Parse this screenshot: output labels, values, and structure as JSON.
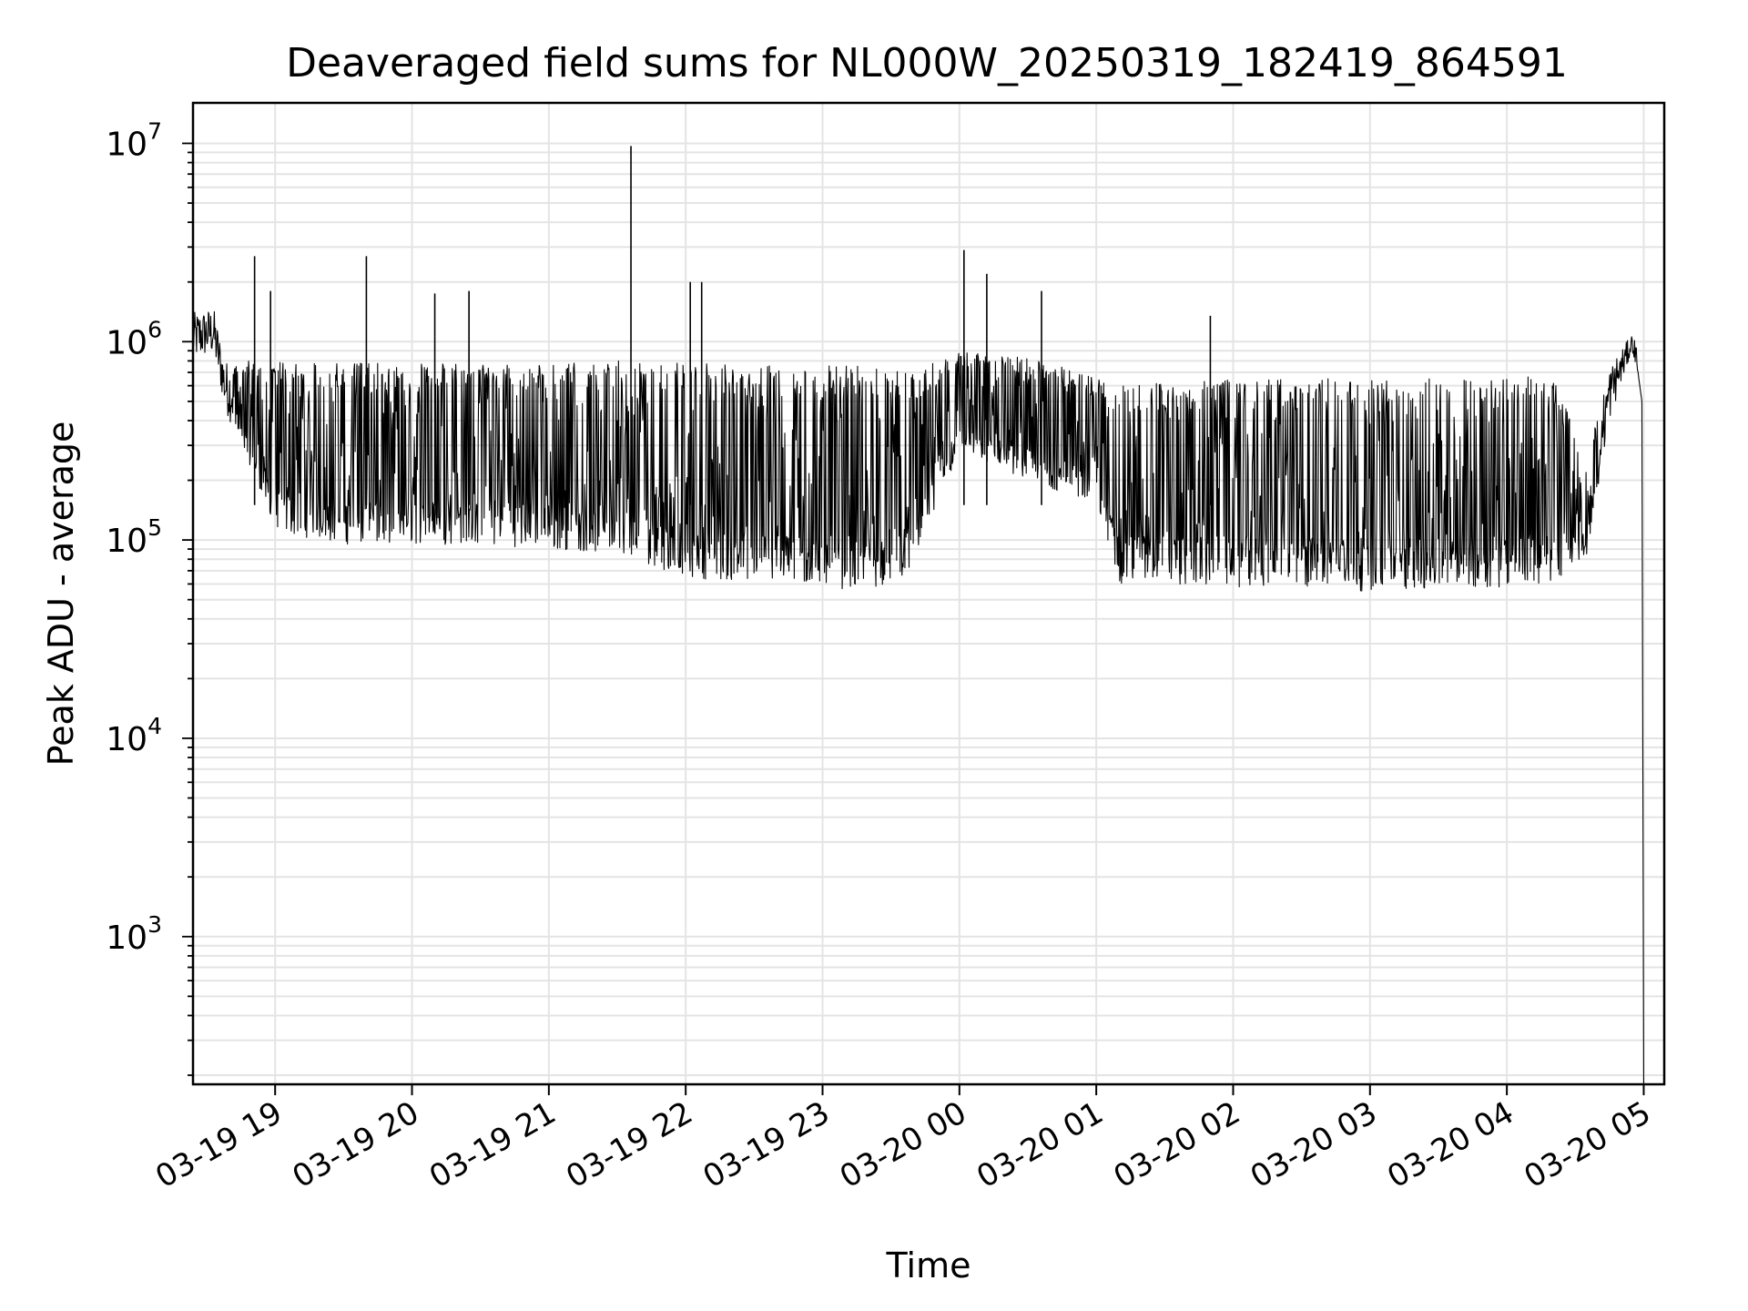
{
  "chart_data": {
    "type": "line",
    "title": "Deaveraged field sums for NL000W_20250319_182419_864591",
    "xlabel": "Time",
    "ylabel": "Peak ADU - average",
    "yscale": "log",
    "xlim": [
      "2025-03-19T18:24",
      "2025-03-20T05:09"
    ],
    "ylim": [
      180,
      16000000
    ],
    "grid": true,
    "line_color": "#000000",
    "x_ticks": [
      {
        "value": "2025-03-19T19:00",
        "label": "03-19 19"
      },
      {
        "value": "2025-03-19T20:00",
        "label": "03-19 20"
      },
      {
        "value": "2025-03-19T21:00",
        "label": "03-19 21"
      },
      {
        "value": "2025-03-19T22:00",
        "label": "03-19 22"
      },
      {
        "value": "2025-03-19T23:00",
        "label": "03-19 23"
      },
      {
        "value": "2025-03-20T00:00",
        "label": "03-20 00"
      },
      {
        "value": "2025-03-20T01:00",
        "label": "03-20 01"
      },
      {
        "value": "2025-03-20T02:00",
        "label": "03-20 02"
      },
      {
        "value": "2025-03-20T03:00",
        "label": "03-20 03"
      },
      {
        "value": "2025-03-20T04:00",
        "label": "03-20 04"
      },
      {
        "value": "2025-03-20T05:00",
        "label": "03-20 05"
      }
    ],
    "y_ticks": [
      {
        "value": 1000,
        "base": "10",
        "exp": "3"
      },
      {
        "value": 10000,
        "base": "10",
        "exp": "4"
      },
      {
        "value": 100000,
        "base": "10",
        "exp": "5"
      },
      {
        "value": 1000000,
        "base": "10",
        "exp": "6"
      },
      {
        "value": 10000000,
        "base": "10",
        "exp": "7"
      }
    ],
    "series": [
      {
        "envelope": [
          {
            "x": "2025-03-19T18:24",
            "low": 800000,
            "high": 1400000
          },
          {
            "x": "2025-03-19T18:33",
            "low": 850000,
            "high": 1500000
          },
          {
            "x": "2025-03-19T18:38",
            "low": 450000,
            "high": 800000
          },
          {
            "x": "2025-03-19T18:45",
            "low": 300000,
            "high": 800000
          },
          {
            "x": "2025-03-19T18:52",
            "low": 200000,
            "high": 800000
          },
          {
            "x": "2025-03-19T19:00",
            "low": 110000,
            "high": 800000
          },
          {
            "x": "2025-03-19T19:30",
            "low": 95000,
            "high": 780000
          },
          {
            "x": "2025-03-19T20:00",
            "low": 95000,
            "high": 780000
          },
          {
            "x": "2025-03-19T20:30",
            "low": 95000,
            "high": 780000
          },
          {
            "x": "2025-03-19T21:00",
            "low": 90000,
            "high": 780000
          },
          {
            "x": "2025-03-19T21:30",
            "low": 85000,
            "high": 800000
          },
          {
            "x": "2025-03-19T22:00",
            "low": 65000,
            "high": 780000
          },
          {
            "x": "2025-03-19T22:30",
            "low": 60000,
            "high": 760000
          },
          {
            "x": "2025-03-19T23:00",
            "low": 58000,
            "high": 760000
          },
          {
            "x": "2025-03-19T23:20",
            "low": 55000,
            "high": 750000
          },
          {
            "x": "2025-03-19T23:40",
            "low": 70000,
            "high": 700000
          },
          {
            "x": "2025-03-20T00:00",
            "low": 280000,
            "high": 900000
          },
          {
            "x": "2025-03-20T00:30",
            "low": 200000,
            "high": 850000
          },
          {
            "x": "2025-03-20T01:00",
            "low": 150000,
            "high": 650000
          },
          {
            "x": "2025-03-20T01:10",
            "low": 60000,
            "high": 600000
          },
          {
            "x": "2025-03-20T02:00",
            "low": 58000,
            "high": 650000
          },
          {
            "x": "2025-03-20T03:00",
            "low": 55000,
            "high": 650000
          },
          {
            "x": "2025-03-20T04:00",
            "low": 58000,
            "high": 650000
          },
          {
            "x": "2025-03-20T04:20",
            "low": 60000,
            "high": 700000
          },
          {
            "x": "2025-03-20T04:35",
            "low": 85000,
            "high": 250000
          },
          {
            "x": "2025-03-20T04:45",
            "low": 400000,
            "high": 750000
          },
          {
            "x": "2025-03-20T04:55",
            "low": 900000,
            "high": 1100000
          },
          {
            "x": "2025-03-20T04:58",
            "low": 600000,
            "high": 900000
          },
          {
            "x": "2025-03-20T05:00",
            "low": 150,
            "high": 500000
          }
        ],
        "spikes": [
          {
            "x": "2025-03-19T18:51",
            "value": 2700000
          },
          {
            "x": "2025-03-19T18:58",
            "value": 1800000
          },
          {
            "x": "2025-03-19T19:40",
            "value": 2700000
          },
          {
            "x": "2025-03-19T20:10",
            "value": 1750000
          },
          {
            "x": "2025-03-19T20:25",
            "value": 1800000
          },
          {
            "x": "2025-03-19T21:36",
            "value": 9700000
          },
          {
            "x": "2025-03-19T22:02",
            "value": 2000000
          },
          {
            "x": "2025-03-19T22:07",
            "value": 2000000
          },
          {
            "x": "2025-03-20T00:02",
            "value": 2900000
          },
          {
            "x": "2025-03-20T00:12",
            "value": 2200000
          },
          {
            "x": "2025-03-20T00:36",
            "value": 1800000
          },
          {
            "x": "2025-03-20T01:50",
            "value": 1350000
          }
        ]
      }
    ]
  }
}
